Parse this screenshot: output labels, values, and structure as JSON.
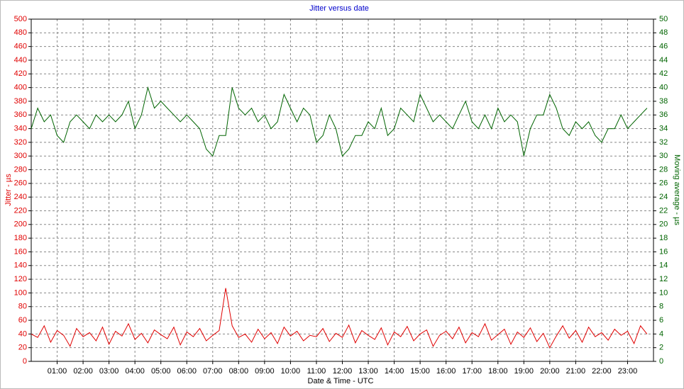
{
  "chart_data": {
    "type": "line",
    "title": "Jitter versus date",
    "x_label": "Date & Time - UTC",
    "y_label": "Jitter - µs",
    "y2_label": "Moving average - µs",
    "x": [
      "00:00",
      "00:15",
      "00:30",
      "00:45",
      "01:00",
      "01:15",
      "01:30",
      "01:45",
      "02:00",
      "02:15",
      "02:30",
      "02:45",
      "03:00",
      "03:15",
      "03:30",
      "03:45",
      "04:00",
      "04:15",
      "04:30",
      "04:45",
      "05:00",
      "05:15",
      "05:30",
      "05:45",
      "06:00",
      "06:15",
      "06:30",
      "06:45",
      "07:00",
      "07:15",
      "07:30",
      "07:45",
      "08:00",
      "08:15",
      "08:30",
      "08:45",
      "09:00",
      "09:15",
      "09:30",
      "09:45",
      "10:00",
      "10:15",
      "10:30",
      "10:45",
      "11:00",
      "11:15",
      "11:30",
      "11:45",
      "12:00",
      "12:15",
      "12:30",
      "12:45",
      "13:00",
      "13:15",
      "13:30",
      "13:45",
      "14:00",
      "14:15",
      "14:30",
      "14:45",
      "15:00",
      "15:15",
      "15:30",
      "15:45",
      "16:00",
      "16:15",
      "16:30",
      "16:45",
      "17:00",
      "17:15",
      "17:30",
      "17:45",
      "18:00",
      "18:15",
      "18:30",
      "18:45",
      "19:00",
      "19:15",
      "19:30",
      "19:45",
      "20:00",
      "20:15",
      "20:30",
      "20:45",
      "21:00",
      "21:15",
      "21:30",
      "21:45",
      "22:00",
      "22:15",
      "22:30",
      "22:45",
      "23:00",
      "23:15",
      "23:30",
      "23:45"
    ],
    "xlim": [
      "00:00",
      "24:00"
    ],
    "xticks": [
      "01:00",
      "02:00",
      "03:00",
      "04:00",
      "05:00",
      "06:00",
      "07:00",
      "08:00",
      "09:00",
      "10:00",
      "11:00",
      "12:00",
      "13:00",
      "14:00",
      "15:00",
      "16:00",
      "17:00",
      "18:00",
      "19:00",
      "20:00",
      "21:00",
      "22:00",
      "23:00"
    ],
    "ylim": [
      0,
      500
    ],
    "yticks": [
      0,
      20,
      40,
      60,
      80,
      100,
      120,
      140,
      160,
      180,
      200,
      220,
      240,
      260,
      280,
      300,
      320,
      340,
      360,
      380,
      400,
      420,
      440,
      460,
      480,
      500
    ],
    "y2lim": [
      0,
      50
    ],
    "y2ticks": [
      0,
      2,
      4,
      6,
      8,
      10,
      12,
      14,
      16,
      18,
      20,
      22,
      24,
      26,
      28,
      30,
      32,
      34,
      36,
      38,
      40,
      42,
      44,
      46,
      48,
      50
    ],
    "grid": true,
    "series": [
      {
        "name": "Jitter",
        "color": "#e00000",
        "axis": "y",
        "values": [
          40,
          35,
          52,
          28,
          45,
          38,
          22,
          48,
          36,
          42,
          30,
          50,
          25,
          44,
          37,
          55,
          32,
          41,
          27,
          46,
          39,
          33,
          50,
          24,
          43,
          36,
          48,
          30,
          38,
          45,
          107,
          52,
          35,
          40,
          28,
          47,
          33,
          42,
          26,
          50,
          37,
          44,
          30,
          38,
          36,
          48,
          29,
          41,
          35,
          53,
          27,
          45,
          38,
          32,
          49,
          24,
          43,
          36,
          51,
          30,
          40,
          46,
          22,
          38,
          44,
          33,
          50,
          27,
          42,
          36,
          55,
          31,
          39,
          47,
          25,
          43,
          35,
          49,
          29,
          41,
          20,
          37,
          52,
          34,
          45,
          28,
          50,
          36,
          42,
          31,
          47,
          38,
          44,
          26,
          52,
          40
        ]
      },
      {
        "name": "Moving average",
        "color": "#006400",
        "axis": "y2",
        "values": [
          34,
          37,
          35,
          36,
          33,
          32,
          35,
          36,
          35,
          34,
          36,
          35,
          36,
          35,
          36,
          38,
          34,
          36,
          40,
          37,
          38,
          37,
          36,
          35,
          36,
          35,
          34,
          31,
          30,
          33,
          33,
          40,
          37,
          36,
          37,
          35,
          36,
          34,
          35,
          39,
          37,
          35,
          37,
          36,
          32,
          33,
          36,
          34,
          30,
          31,
          33,
          33,
          35,
          34,
          37,
          33,
          34,
          37,
          36,
          35,
          39,
          37,
          35,
          36,
          35,
          34,
          36,
          38,
          35,
          34,
          36,
          34,
          37,
          35,
          36,
          35,
          30,
          34,
          36,
          36,
          39,
          37,
          34,
          33,
          35,
          34,
          35,
          33,
          32,
          34,
          34,
          36,
          34,
          35,
          36,
          37
        ]
      }
    ]
  }
}
